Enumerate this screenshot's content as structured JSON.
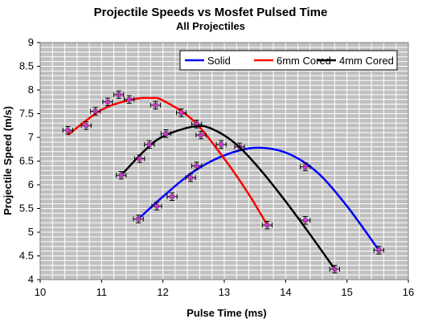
{
  "chart_data": {
    "type": "scatter",
    "title": "Projectile Speeds vs Mosfet Pulsed Time",
    "subtitle": "All Projectiles",
    "xlabel": "Pulse Time (ms)",
    "ylabel": "Projectile Speed (m/s)",
    "xlim": [
      10,
      16
    ],
    "ylim": [
      4,
      9
    ],
    "x_ticks": [
      "10",
      "11",
      "12",
      "13",
      "14",
      "15",
      "16"
    ],
    "y_ticks": [
      "4",
      "4.5",
      "5",
      "5.5",
      "6",
      "6.5",
      "7",
      "7.5",
      "8",
      "8.5",
      "9"
    ],
    "grid": true,
    "plot_background": "#c0c0c0",
    "gridline_color": "#ffffff",
    "legend_position": "top-right",
    "series": [
      {
        "name": "Solid",
        "color": "#0000ff",
        "points": [
          {
            "x": 11.6,
            "y": 5.28
          },
          {
            "x": 11.9,
            "y": 5.55
          },
          {
            "x": 12.15,
            "y": 5.75
          },
          {
            "x": 12.45,
            "y": 6.15
          },
          {
            "x": 12.55,
            "y": 6.4
          },
          {
            "x": 13.25,
            "y": 6.8
          },
          {
            "x": 14.32,
            "y": 6.38
          },
          {
            "x": 15.52,
            "y": 4.62
          }
        ],
        "curve": [
          {
            "x": 11.6,
            "y": 5.28
          },
          {
            "x": 12.0,
            "y": 5.75
          },
          {
            "x": 12.5,
            "y": 6.28
          },
          {
            "x": 13.0,
            "y": 6.62
          },
          {
            "x": 13.5,
            "y": 6.78
          },
          {
            "x": 14.0,
            "y": 6.68
          },
          {
            "x": 14.5,
            "y": 6.28
          },
          {
            "x": 15.0,
            "y": 5.55
          },
          {
            "x": 15.52,
            "y": 4.62
          }
        ]
      },
      {
        "name": "6mm Cored",
        "color": "#ff0000",
        "points": [
          {
            "x": 10.45,
            "y": 7.15
          },
          {
            "x": 10.75,
            "y": 7.25
          },
          {
            "x": 10.9,
            "y": 7.55
          },
          {
            "x": 11.1,
            "y": 7.75
          },
          {
            "x": 11.28,
            "y": 7.9
          },
          {
            "x": 11.45,
            "y": 7.8
          },
          {
            "x": 11.88,
            "y": 7.68
          },
          {
            "x": 12.3,
            "y": 7.52
          },
          {
            "x": 12.55,
            "y": 7.28
          },
          {
            "x": 13.7,
            "y": 5.15
          }
        ],
        "curve": [
          {
            "x": 10.45,
            "y": 7.05
          },
          {
            "x": 11.0,
            "y": 7.58
          },
          {
            "x": 11.5,
            "y": 7.8
          },
          {
            "x": 11.8,
            "y": 7.83
          },
          {
            "x": 12.0,
            "y": 7.78
          },
          {
            "x": 12.5,
            "y": 7.35
          },
          {
            "x": 13.0,
            "y": 6.55
          },
          {
            "x": 13.4,
            "y": 5.8
          },
          {
            "x": 13.7,
            "y": 5.15
          }
        ]
      },
      {
        "name": "4mm Cored",
        "color": "#000000",
        "points": [
          {
            "x": 11.32,
            "y": 6.2
          },
          {
            "x": 11.62,
            "y": 6.55
          },
          {
            "x": 11.78,
            "y": 6.85
          },
          {
            "x": 12.05,
            "y": 7.08
          },
          {
            "x": 12.62,
            "y": 7.05
          },
          {
            "x": 12.95,
            "y": 6.85
          },
          {
            "x": 14.32,
            "y": 5.25
          },
          {
            "x": 14.8,
            "y": 4.22
          }
        ],
        "curve": [
          {
            "x": 11.32,
            "y": 6.2
          },
          {
            "x": 11.7,
            "y": 6.72
          },
          {
            "x": 12.0,
            "y": 7.02
          },
          {
            "x": 12.5,
            "y": 7.23
          },
          {
            "x": 12.8,
            "y": 7.18
          },
          {
            "x": 13.2,
            "y": 6.85
          },
          {
            "x": 13.6,
            "y": 6.3
          },
          {
            "x": 14.0,
            "y": 5.65
          },
          {
            "x": 14.4,
            "y": 4.95
          },
          {
            "x": 14.8,
            "y": 4.22
          }
        ]
      }
    ]
  }
}
